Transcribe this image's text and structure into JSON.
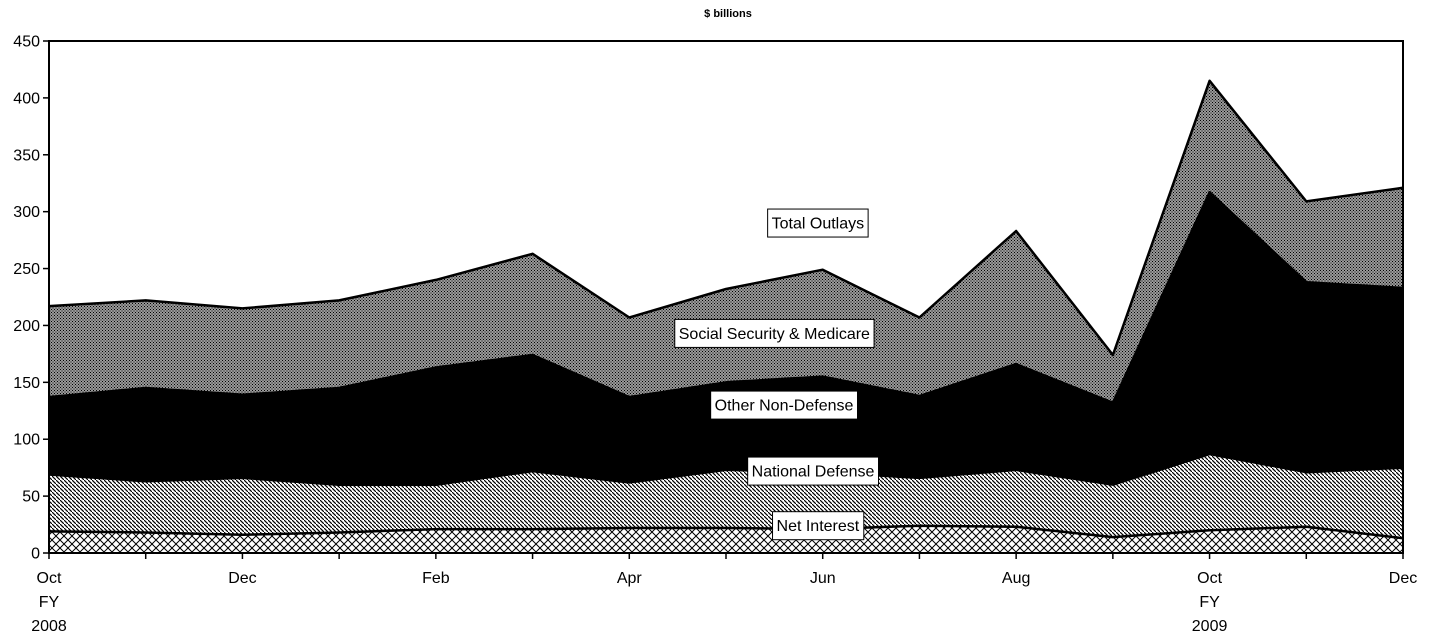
{
  "chart_data": {
    "type": "area",
    "stacked": true,
    "title": "$ billions",
    "xlabel": "",
    "ylabel": "",
    "ylim": [
      0,
      450
    ],
    "yticks": [
      0,
      50,
      100,
      150,
      200,
      250,
      300,
      350,
      400,
      450
    ],
    "grid": false,
    "legend": "none",
    "x_tick_labels": [
      {
        "index": 0,
        "lines": [
          "Oct",
          "FY",
          "2008"
        ]
      },
      {
        "index": 2,
        "lines": [
          "Dec"
        ]
      },
      {
        "index": 4,
        "lines": [
          "Feb"
        ]
      },
      {
        "index": 6,
        "lines": [
          "Apr"
        ]
      },
      {
        "index": 8,
        "lines": [
          "Jun"
        ]
      },
      {
        "index": 10,
        "lines": [
          "Aug"
        ]
      },
      {
        "index": 12,
        "lines": [
          "Oct",
          "FY",
          "2009"
        ]
      },
      {
        "index": 14,
        "lines": [
          "Dec"
        ]
      }
    ],
    "series": [
      {
        "name": "Net Interest",
        "pattern": "crosshatch",
        "values": [
          19,
          18,
          16,
          18,
          21,
          21,
          22,
          22,
          21,
          24,
          23,
          14,
          20,
          23,
          13
        ]
      },
      {
        "name": "National Defense",
        "pattern": "diagonal",
        "values": [
          69,
          63,
          66,
          60,
          60,
          72,
          62,
          73,
          71,
          66,
          73,
          60,
          87,
          71,
          75
        ]
      },
      {
        "name": "Other Non-Defense",
        "pattern": "solid",
        "values": [
          137,
          145,
          139,
          145,
          163,
          174,
          137,
          150,
          155,
          138,
          166,
          132,
          317,
          238,
          233
        ]
      },
      {
        "name": "Social Security & Medicare",
        "pattern": "fine",
        "values": [
          217,
          222,
          215,
          222,
          240,
          263,
          207,
          232,
          249,
          207,
          283,
          174,
          415,
          309,
          321
        ]
      }
    ],
    "annotations": [
      {
        "text": "Total Outlays",
        "x": 7.95,
        "y": 290
      },
      {
        "text": "Social Security & Medicare",
        "x": 7.5,
        "y": 193
      },
      {
        "text": "Other Non-Defense",
        "x": 7.6,
        "y": 130
      },
      {
        "text": "National Defense",
        "x": 7.9,
        "y": 72
      },
      {
        "text": "Net Interest",
        "x": 7.95,
        "y": 24
      }
    ],
    "colors": {
      "line": "#000000",
      "pattern": "#000000",
      "background": "#ffffff"
    }
  }
}
